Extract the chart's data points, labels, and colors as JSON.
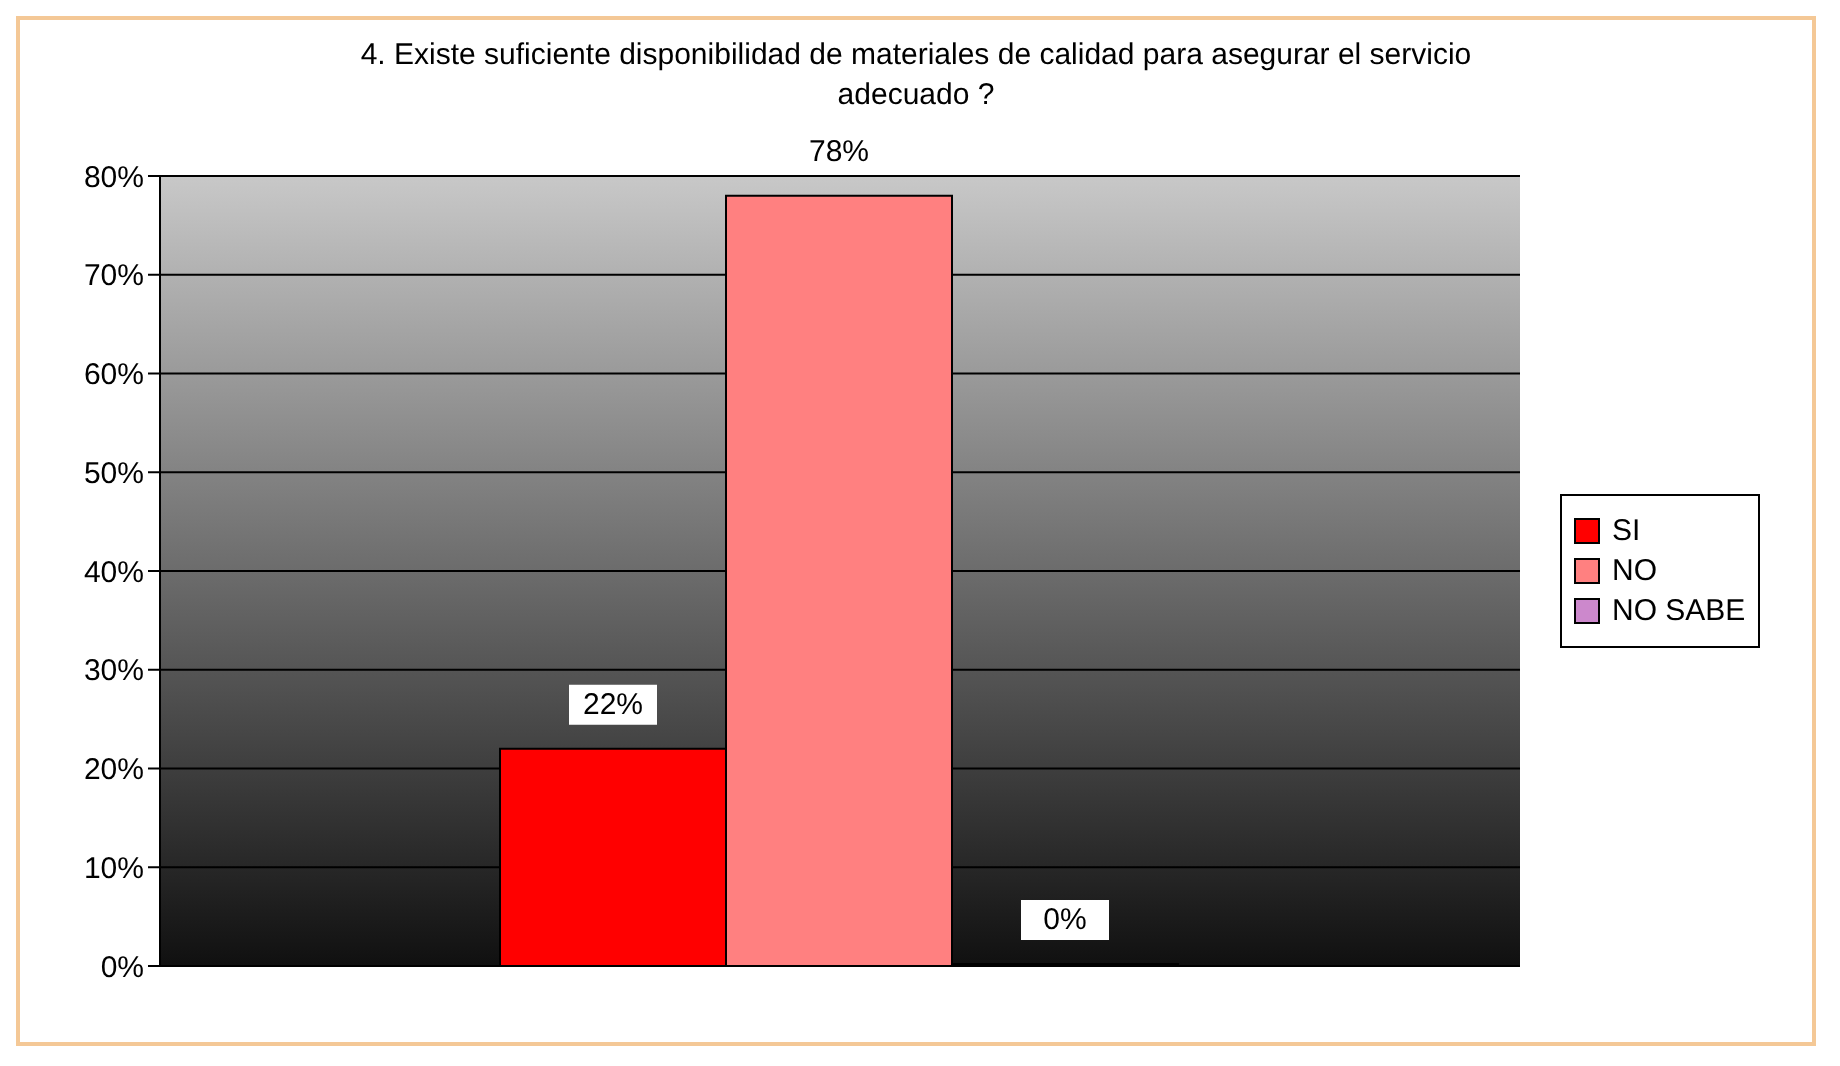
{
  "chart_data": {
    "type": "bar",
    "title": "4. Existe suficiente disponibilidad de materiales de calidad para asegurar el servicio adecuado ?",
    "categories": [
      null
    ],
    "series": [
      {
        "name": "SI",
        "color": "#ff0000",
        "values": [
          22
        ],
        "value_labels": [
          "22%"
        ]
      },
      {
        "name": "NO",
        "color": "#ff8080",
        "values": [
          78
        ],
        "value_labels": [
          "78%"
        ]
      },
      {
        "name": "NO SABE",
        "color": "#cc88cc",
        "values": [
          0
        ],
        "value_labels": [
          "0%"
        ]
      }
    ],
    "ylim": [
      0,
      80
    ],
    "yticks": [
      {
        "value": 0,
        "label": "0%"
      },
      {
        "value": 10,
        "label": "10%"
      },
      {
        "value": 20,
        "label": "20%"
      },
      {
        "value": 30,
        "label": "30%"
      },
      {
        "value": 40,
        "label": "40%"
      },
      {
        "value": 50,
        "label": "50%"
      },
      {
        "value": 60,
        "label": "60%"
      },
      {
        "value": 70,
        "label": "70%"
      },
      {
        "value": 80,
        "label": "80%"
      }
    ],
    "grid": "y",
    "legend": "right"
  }
}
